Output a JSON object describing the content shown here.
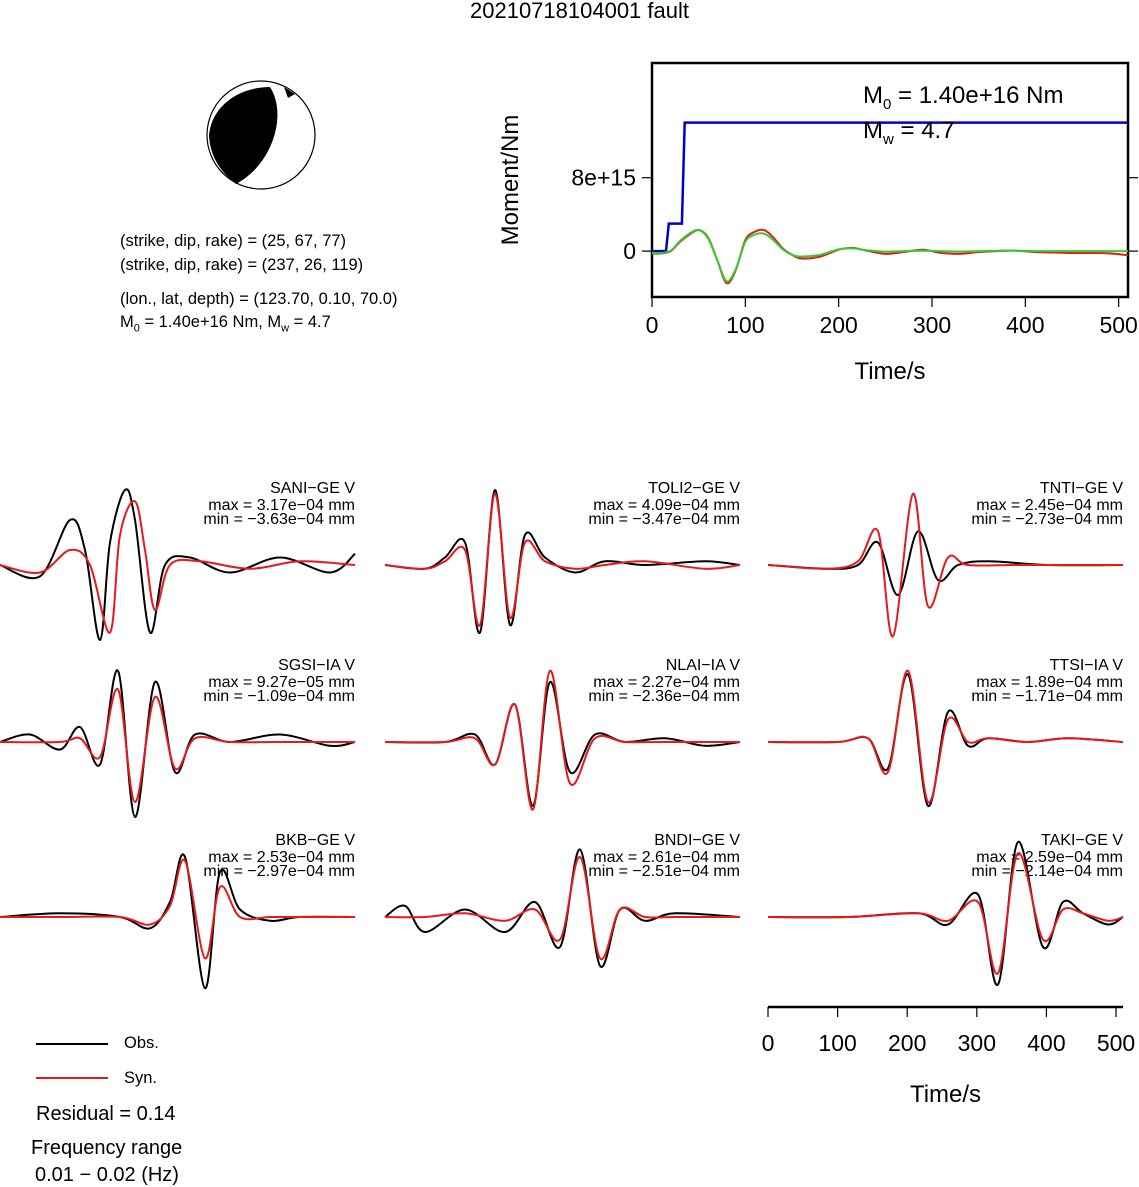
{
  "title": "20210718104001 fault",
  "mechanism": {
    "line1": "(strike, dip, rake) = (25, 67, 77)",
    "line2": "(strike, dip, rake) = (237, 26, 119)",
    "line3": "(lon., lat, depth) = (123.70, 0.10, 70.0)",
    "m0_prefix": "M",
    "m0_sub": "0",
    "m0_rest": " = 1.40e+16 Nm, M",
    "mw_sub": "w",
    "mw_rest": " = 4.7"
  },
  "moment_annotation": {
    "m0_main": "M",
    "m0_sub": "0",
    "m0_value": " = 1.40e+16 Nm",
    "mw_main": "M",
    "mw_sub": "w",
    "mw_value": " = 4.7"
  },
  "legend": {
    "obs": "Obs.",
    "syn": "Syn."
  },
  "residual": "Residual = 0.14",
  "frequency": {
    "label": "Frequency range",
    "value": "0.01 − 0.02 (Hz)"
  },
  "colors": {
    "obs": "#000000",
    "syn": "#e41a1c",
    "moment": "#0000cc",
    "green": "#33cc33"
  },
  "chart_data": [
    {
      "type": "line",
      "xlabel": "Time/s",
      "ylabel": "Moment/Nm",
      "xlim": [
        0,
        510
      ],
      "ylim": [
        -5000000000000000,
        20500000000000000
      ],
      "xticks": [
        0,
        100,
        200,
        300,
        400,
        500
      ],
      "yticks": [
        0,
        8000000000000000
      ],
      "yticklabels": [
        "0",
        "8e+15"
      ],
      "series": [
        {
          "color": "#0000cc",
          "x": [
            0,
            15,
            18,
            32,
            35,
            510
          ],
          "y": [
            0,
            0,
            3000000000000000,
            3000000000000000,
            14000000000000000,
            14000000000000000
          ]
        },
        {
          "color": "#e41a1c",
          "x": [
            0,
            10,
            20,
            30,
            40,
            50,
            60,
            70,
            80,
            90,
            100,
            110,
            120,
            130,
            140,
            150,
            160,
            180,
            200,
            215,
            230,
            250,
            270,
            290,
            310,
            330,
            350,
            370,
            390,
            410,
            430,
            450,
            470,
            490,
            510
          ],
          "y": [
            -250000000000000,
            -250000000000000,
            0,
            1000000000000000,
            1800000000000000,
            2300000000000000,
            1500000000000000,
            -1000000000000000,
            -3500000000000000,
            -2000000000000000,
            1200000000000000,
            2100000000000000,
            2300000000000000,
            1500000000000000,
            300000000000000,
            -400000000000000,
            -800000000000000,
            -600000000000000,
            150000000000000,
            350000000000000,
            50000000000000,
            -300000000000000,
            -100000000000000,
            150000000000000,
            -200000000000000,
            -300000000000000,
            -100000000000000,
            0,
            50000000000000,
            -100000000000000,
            -150000000000000,
            -200000000000000,
            -200000000000000,
            -250000000000000,
            -450000000000000
          ]
        },
        {
          "color": "#33cc33",
          "x": [
            0,
            10,
            20,
            30,
            40,
            50,
            60,
            70,
            80,
            90,
            100,
            110,
            120,
            130,
            140,
            150,
            160,
            180,
            200,
            215,
            230,
            250,
            270,
            290,
            310,
            330,
            350,
            370,
            390,
            410,
            430,
            450,
            470,
            490,
            510
          ],
          "y": [
            -200000000000000,
            -200000000000000,
            50000000000000,
            1100000000000000,
            1900000000000000,
            2300000000000000,
            1400000000000000,
            -1000000000000000,
            -3300000000000000,
            -1900000000000000,
            1000000000000000,
            1800000000000000,
            1900000000000000,
            1200000000000000,
            200000000000000,
            -400000000000000,
            -600000000000000,
            -400000000000000,
            200000000000000,
            300000000000000,
            100000000000000,
            -50000000000000,
            0,
            50000000000000,
            0,
            -50000000000000,
            0,
            50000000000000,
            50000000000000,
            0,
            0,
            0,
            0,
            0,
            0
          ]
        }
      ]
    },
    {
      "type": "line",
      "xlabel": "Time/s",
      "xlim": [
        0,
        510
      ],
      "xticks": [
        0,
        100,
        200,
        300,
        400,
        500
      ],
      "stations": [
        {
          "name": "SANI−GE V",
          "max": "max = 3.17e−04 mm",
          "min": "min = −3.63e−04 mm",
          "obs": {
            "x": [
              0,
              40,
              70,
              85,
              100,
              110,
              125,
              135,
              150,
              165,
              190,
              230,
              280,
              330,
              355
            ],
            "y": [
              0,
              -0.15,
              0.6,
              0.2,
              -1.0,
              0.3,
              1.0,
              0.6,
              -0.9,
              0,
              0.1,
              -0.1,
              0.1,
              -0.1,
              0.15
            ]
          },
          "syn": {
            "x": [
              0,
              40,
              70,
              90,
              110,
              120,
              135,
              145,
              155,
              170,
              200,
              250,
              300,
              355
            ],
            "y": [
              0,
              -0.1,
              0.2,
              0,
              -0.9,
              0.4,
              0.85,
              0.2,
              -0.6,
              0,
              0.05,
              -0.05,
              0.05,
              0
            ]
          }
        },
        {
          "name": "TOLI2−GE V",
          "max": "max = 4.09e−04 mm",
          "min": "min = −3.47e−04 mm",
          "obs": {
            "x": [
              0,
              40,
              60,
              80,
              95,
              110,
              125,
              140,
              160,
              190,
              220,
              260,
              320,
              355
            ],
            "y": [
              0,
              -0.05,
              0.1,
              0.3,
              -0.9,
              1.0,
              -0.8,
              0.4,
              0.1,
              -0.1,
              0.05,
              0,
              0.05,
              0
            ]
          },
          "syn": {
            "x": [
              0,
              40,
              60,
              80,
              95,
              110,
              125,
              140,
              160,
              190,
              220,
              260,
              320,
              355
            ],
            "y": [
              0,
              -0.05,
              0.05,
              0.2,
              -0.8,
              0.95,
              -0.7,
              0.3,
              0.05,
              -0.05,
              0,
              0.05,
              -0.05,
              0
            ]
          }
        },
        {
          "name": "TNTI−GE V",
          "max": "max = 2.45e−04 mm",
          "min": "min = −2.73e−04 mm",
          "obs": {
            "x": [
              0,
              60,
              90,
              110,
              130,
              150,
              170,
              190,
              220,
              280,
              355
            ],
            "y": [
              0,
              -0.05,
              0,
              0.3,
              -0.4,
              0.45,
              -0.2,
              0,
              0.05,
              0,
              0
            ]
          },
          "syn": {
            "x": [
              0,
              60,
              90,
              110,
              125,
              145,
              160,
              180,
              200,
              250,
              355
            ],
            "y": [
              0,
              -0.05,
              0.05,
              0.45,
              -0.95,
              0.95,
              -0.55,
              0.1,
              0,
              0,
              0
            ]
          }
        },
        {
          "name": "SGSI−IA V",
          "max": "max = 9.27e−05 mm",
          "min": "min = −1.09e−04 mm",
          "obs": {
            "x": [
              0,
              30,
              60,
              80,
              100,
              118,
              135,
              155,
              175,
              195,
              230,
              280,
              330,
              355
            ],
            "y": [
              0,
              0.1,
              -0.1,
              0.2,
              -0.3,
              0.95,
              -1.0,
              0.8,
              -0.4,
              0.1,
              0,
              0.1,
              -0.05,
              0
            ]
          },
          "syn": {
            "x": [
              0,
              60,
              80,
              100,
              118,
              135,
              155,
              175,
              195,
              230,
              280,
              355
            ],
            "y": [
              0,
              0,
              0.05,
              -0.2,
              0.7,
              -0.8,
              0.6,
              -0.35,
              0.05,
              0,
              0,
              0
            ]
          }
        },
        {
          "name": "NLAI−IA V",
          "max": "max = 2.27e−04 mm",
          "min": "min = −2.36e−04 mm",
          "obs": {
            "x": [
              0,
              60,
              90,
              110,
              130,
              148,
              165,
              185,
              210,
              240,
              280,
              320,
              355
            ],
            "y": [
              0,
              0,
              0.1,
              -0.3,
              0.5,
              -0.85,
              0.8,
              -0.4,
              0.1,
              0,
              0.05,
              -0.05,
              0
            ]
          },
          "syn": {
            "x": [
              0,
              60,
              90,
              110,
              130,
              148,
              165,
              185,
              210,
              240,
              280,
              355
            ],
            "y": [
              0,
              0,
              0.05,
              -0.3,
              0.5,
              -0.9,
              0.95,
              -0.55,
              0.05,
              0,
              0,
              0
            ]
          }
        },
        {
          "name": "TTSI−IA V",
          "max": "max = 1.89e−04 mm",
          "min": "min = −1.71e−04 mm",
          "obs": {
            "x": [
              0,
              70,
              100,
              120,
              140,
              160,
              180,
              200,
              220,
              260,
              300,
              355
            ],
            "y": [
              0,
              0,
              0.05,
              -0.35,
              0.9,
              -0.85,
              0.4,
              -0.05,
              0.05,
              0,
              0.05,
              0
            ]
          },
          "syn": {
            "x": [
              0,
              70,
              100,
              120,
              140,
              160,
              180,
              200,
              220,
              260,
              300,
              355
            ],
            "y": [
              0,
              0,
              0.05,
              -0.4,
              0.95,
              -0.8,
              0.3,
              0,
              0.05,
              0,
              0.05,
              0
            ]
          }
        },
        {
          "name": "BKB−GE V",
          "max": "max = 2.53e−04 mm",
          "min": "min = −2.97e−04 mm",
          "obs": {
            "x": [
              0,
              60,
              120,
              150,
              170,
              185,
              205,
              220,
              240,
              270,
              300,
              355
            ],
            "y": [
              0,
              0.05,
              0,
              -0.15,
              0.2,
              0.8,
              -0.95,
              0.6,
              0.1,
              -0.05,
              0,
              0
            ]
          },
          "syn": {
            "x": [
              0,
              60,
              120,
              150,
              170,
              185,
              205,
              220,
              240,
              270,
              300,
              355
            ],
            "y": [
              0,
              0,
              0,
              -0.1,
              0.15,
              0.75,
              -0.55,
              0.4,
              0,
              0,
              0,
              0
            ]
          }
        },
        {
          "name": "BNDI−GE V",
          "max": "max = 2.61e−04 mm",
          "min": "min = −2.51e−04 mm",
          "obs": {
            "x": [
              0,
              20,
              40,
              80,
              120,
              150,
              175,
              195,
              215,
              235,
              260,
              290,
              355
            ],
            "y": [
              0,
              0.15,
              -0.2,
              0.1,
              -0.2,
              0.2,
              -0.4,
              0.9,
              -0.65,
              0.1,
              -0.05,
              0.05,
              0
            ]
          },
          "syn": {
            "x": [
              0,
              40,
              80,
              120,
              150,
              175,
              195,
              215,
              235,
              260,
              290,
              355
            ],
            "y": [
              0,
              0,
              0.05,
              -0.05,
              0.1,
              -0.3,
              0.8,
              -0.55,
              0.1,
              0,
              0,
              0
            ]
          }
        },
        {
          "name": "TAKI−GE V",
          "max": "max = 2.59e−04 mm",
          "min": "min = −2.14e−04 mm",
          "obs": {
            "x": [
              0,
              80,
              150,
              180,
              210,
              230,
              250,
              275,
              295,
              315,
              340,
              360,
              380,
              400,
              430,
              355
            ],
            "y": [
              0,
              0,
              0.05,
              -0.1,
              0.3,
              -0.9,
              1.0,
              -0.4,
              0.2,
              0.05,
              -0.1,
              0.05,
              0,
              0,
              0,
              0
            ]
          },
          "syn": {
            "x": [
              0,
              80,
              150,
              180,
              210,
              230,
              250,
              275,
              295,
              315,
              340,
              360,
              380,
              400,
              430,
              355
            ],
            "y": [
              0,
              0,
              0.05,
              -0.05,
              0.2,
              -0.75,
              0.85,
              -0.3,
              0.1,
              0.05,
              -0.05,
              0,
              0,
              0,
              0,
              0
            ]
          }
        }
      ]
    }
  ]
}
